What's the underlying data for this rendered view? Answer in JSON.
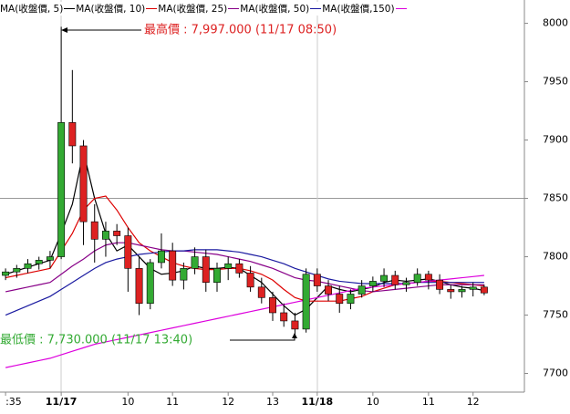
{
  "chart_data": {
    "type": "candlestick",
    "categories": [
      ":35",
      null,
      null,
      null,
      null,
      "11/17",
      null,
      null,
      null,
      null,
      null,
      "10",
      null,
      null,
      null,
      "11",
      null,
      null,
      null,
      null,
      "12",
      null,
      null,
      null,
      "13",
      null,
      null,
      null,
      "11/18",
      null,
      null,
      null,
      null,
      "10",
      null,
      null,
      null,
      null,
      "11",
      null,
      null,
      null,
      "12",
      null
    ],
    "open": [
      7784,
      7787,
      7790,
      7794,
      7797,
      7800,
      7915,
      7895,
      7830,
      7815,
      7822,
      7818,
      7790,
      7760,
      7795,
      7805,
      7780,
      7790,
      7800,
      7778,
      7790,
      7794,
      7786,
      7774,
      7765,
      7752,
      7745,
      7738,
      7785,
      7775,
      7768,
      7760,
      7768,
      7775,
      7779,
      7784,
      7776,
      7778,
      7785,
      7780,
      7772,
      7770,
      7772,
      7774
    ],
    "high": [
      7790,
      7793,
      7798,
      7800,
      7805,
      7997,
      7960,
      7900,
      7845,
      7830,
      7828,
      7825,
      7800,
      7798,
      7820,
      7812,
      7795,
      7808,
      7806,
      7795,
      7800,
      7798,
      7792,
      7782,
      7770,
      7760,
      7752,
      7790,
      7790,
      7780,
      7775,
      7772,
      7780,
      7783,
      7790,
      7788,
      7782,
      7790,
      7788,
      7785,
      7776,
      7775,
      7778,
      7776
    ],
    "low": [
      7780,
      7782,
      7786,
      7789,
      7790,
      7798,
      7880,
      7810,
      7795,
      7800,
      7810,
      7770,
      7750,
      7755,
      7790,
      7775,
      7772,
      7785,
      7770,
      7770,
      7780,
      7782,
      7770,
      7760,
      7745,
      7740,
      7730,
      7735,
      7770,
      7762,
      7752,
      7755,
      7765,
      7770,
      7774,
      7772,
      7770,
      7775,
      7772,
      7768,
      7764,
      7765,
      7766,
      7767
    ],
    "close": [
      7787,
      7790,
      7794,
      7797,
      7800,
      7915,
      7895,
      7830,
      7815,
      7822,
      7818,
      7790,
      7760,
      7795,
      7805,
      7780,
      7790,
      7800,
      7778,
      7790,
      7794,
      7786,
      7774,
      7765,
      7752,
      7745,
      7738,
      7785,
      7775,
      7768,
      7760,
      7768,
      7775,
      7779,
      7784,
      7776,
      7778,
      7785,
      7780,
      7772,
      7770,
      7772,
      7774,
      7769
    ],
    "up_color": "#33aa33",
    "down_color": "#dd2222",
    "series": [
      {
        "name": "MA(收盤價, 5)",
        "color": "#000000",
        "values": [
          7785,
          7788,
          7791,
          7794,
          7797,
          7820,
          7845,
          7890,
          7850,
          7820,
          7805,
          7810,
          7800,
          7790,
          7785,
          7786,
          7788,
          7792,
          7790,
          7790,
          7791,
          7790,
          7784,
          7778,
          7768,
          7758,
          7750,
          7755,
          7765,
          7775,
          7772,
          7770,
          7772,
          7774,
          7778,
          7780,
          7779,
          7780,
          7781,
          7779,
          7776,
          7774,
          7773,
          7771
        ]
      },
      {
        "name": "MA(收盤價, 10)",
        "color": "#dd0000",
        "values": [
          7782,
          7784,
          7786,
          7788,
          7790,
          7805,
          7820,
          7840,
          7850,
          7852,
          7840,
          7825,
          7812,
          7805,
          7800,
          7795,
          7792,
          7790,
          7789,
          7789,
          7790,
          7790,
          7788,
          7785,
          7780,
          7772,
          7765,
          7762,
          7762,
          7762,
          7762,
          7764,
          7766,
          7770,
          7773,
          7776,
          7777,
          7778,
          7779,
          7779,
          7778,
          7777,
          7776,
          7775
        ]
      },
      {
        "name": "MA(收盤價, 25)",
        "color": "#880088",
        "values": [
          7770,
          7772,
          7774,
          7776,
          7778,
          7785,
          7792,
          7798,
          7805,
          7810,
          7812,
          7812,
          7810,
          7808,
          7806,
          7805,
          7805,
          7804,
          7803,
          7802,
          7800,
          7798,
          7796,
          7793,
          7790,
          7786,
          7782,
          7780,
          7779,
          7777,
          7775,
          7773,
          7771,
          7770,
          7771,
          7772,
          7773,
          7774,
          7775,
          7776,
          7776,
          7776,
          7776,
          7776
        ]
      },
      {
        "name": "MA(收盤價, 50)",
        "color": "#1a1aa0",
        "values": [
          7750,
          7754,
          7758,
          7762,
          7766,
          7772,
          7778,
          7784,
          7790,
          7795,
          7798,
          7800,
          7802,
          7803,
          7804,
          7805,
          7805,
          7806,
          7806,
          7806,
          7805,
          7804,
          7802,
          7800,
          7797,
          7794,
          7790,
          7787,
          7784,
          7781,
          7779,
          7778,
          7777,
          7777,
          7777,
          7777,
          7777,
          7778,
          7778,
          7778,
          7778,
          7778,
          7778,
          7778
        ]
      },
      {
        "name": "MA(收盤價,150)",
        "color": "#dd00dd",
        "values": [
          7705,
          7707,
          7709,
          7711,
          7713,
          7716,
          7719,
          7722,
          7725,
          7727,
          7729,
          7731,
          7733,
          7735,
          7737,
          7739,
          7741,
          7743,
          7745,
          7747,
          7749,
          7751,
          7753,
          7755,
          7757,
          7759,
          7761,
          7763,
          7765,
          7767,
          7769,
          7771,
          7773,
          7774,
          7775,
          7776,
          7777,
          7778,
          7779,
          7780,
          7781,
          7782,
          7783,
          7784
        ]
      }
    ],
    "ylim": [
      7684,
      8020
    ],
    "yticks": [
      7700,
      7750,
      7800,
      7850,
      7900,
      7950,
      8000
    ],
    "annotations": [
      "最高價 : 7,997.000 (11/17 08:50)",
      "最低價 : 7,730.000 (11/17 13:40)"
    ]
  }
}
